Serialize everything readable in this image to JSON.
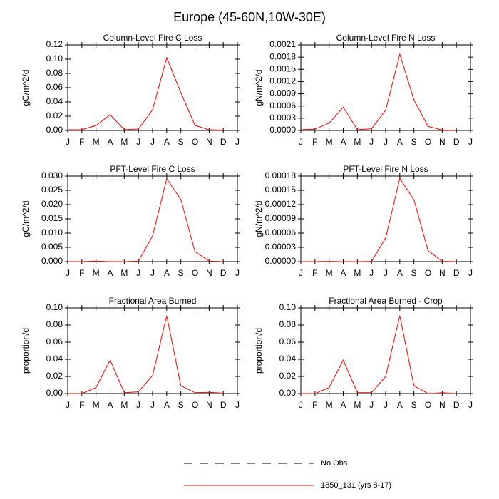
{
  "title": "Europe (45-60N,10W-30E)",
  "legend": [
    {
      "name": "No Obs",
      "color": "#000000",
      "dashed": true
    },
    {
      "name": "1850_131 (yrs 8-17)",
      "color": "#ff0000",
      "dashed": false
    }
  ],
  "chart_data": [
    {
      "type": "line",
      "title": "Column-Level Fire C Loss",
      "y_label": "gC/m^2/d",
      "color": "#ff0000",
      "categories": [
        "J",
        "F",
        "M",
        "A",
        "M",
        "J",
        "J",
        "A",
        "S",
        "O",
        "N",
        "D",
        "J"
      ],
      "values": [
        0.001,
        0.001,
        0.007,
        0.022,
        0.001,
        0.002,
        0.029,
        0.102,
        0.053,
        0.007,
        0.001,
        0.0005,
        null
      ],
      "ylim": [
        0,
        0.12
      ],
      "yticks": [
        {
          "value": 0,
          "label": "0.00"
        },
        0.02,
        0.04,
        0.06,
        0.08,
        {
          "value": 0.1,
          "label": "0.10"
        },
        0.12
      ]
    },
    {
      "type": "line",
      "title": "Column-Level Fire N Loss",
      "y_label": "gN/m^2/d",
      "color": "#ff0000",
      "categories": [
        "J",
        "F",
        "M",
        "A",
        "M",
        "J",
        "J",
        "A",
        "S",
        "O",
        "N",
        "D",
        "J"
      ],
      "values": [
        2e-05,
        3e-05,
        0.00018,
        0.00057,
        2e-05,
        4e-05,
        0.0005,
        0.00187,
        0.00075,
        0.0001,
        1e-05,
        5e-06,
        null
      ],
      "ylim": [
        0,
        0.0021
      ],
      "yticks": [
        {
          "value": 0,
          "label": "0.0000"
        },
        0.0003,
        0.0006,
        0.0009,
        0.0012,
        0.0015,
        0.0018,
        0.0021
      ]
    },
    {
      "type": "line",
      "title": "PFT-Level Fire C Loss",
      "y_label": "gC/m^2/d",
      "color": "#ff0000",
      "categories": [
        "J",
        "F",
        "M",
        "A",
        "M",
        "J",
        "J",
        "A",
        "S",
        "O",
        "N",
        "D",
        "J"
      ],
      "values": [
        0,
        0,
        0.0002,
        0,
        0,
        0.0002,
        0.009,
        0.029,
        0.0218,
        0.0035,
        0.0002,
        0,
        null
      ],
      "ylim": [
        0,
        0.03
      ],
      "yticks": [
        {
          "value": 0,
          "label": "0.000"
        },
        0.005,
        {
          "value": 0.01,
          "label": "0.010"
        },
        0.015,
        {
          "value": 0.02,
          "label": "0.020"
        },
        0.025,
        {
          "value": 0.03,
          "label": "0.030"
        }
      ]
    },
    {
      "type": "line",
      "title": "PFT-Level Fire N Loss",
      "y_label": "gN/m^2/d",
      "color": "#ff0000",
      "categories": [
        "J",
        "F",
        "M",
        "A",
        "M",
        "J",
        "J",
        "A",
        "S",
        "O",
        "N",
        "D",
        "J"
      ],
      "values": [
        0,
        0,
        5e-07,
        0,
        0,
        5e-07,
        5e-05,
        0.000175,
        0.00013,
        2.3e-05,
        5e-07,
        0,
        null
      ],
      "ylim": [
        0,
        0.00018
      ],
      "yticks": [
        {
          "value": 0,
          "label": "0.00000"
        },
        3e-05,
        6e-05,
        9e-05,
        0.00012,
        0.00015,
        0.00018
      ]
    },
    {
      "type": "line",
      "title": "Fractional Area Burned",
      "y_label": "proportion/d",
      "color": "#ff0000",
      "categories": [
        "J",
        "F",
        "M",
        "A",
        "M",
        "J",
        "J",
        "A",
        "S",
        "O",
        "N",
        "D",
        "J"
      ],
      "values": [
        0,
        0,
        0.007,
        0.039,
        0.001,
        0.002,
        0.021,
        0.091,
        0.009,
        0.001,
        0.0015,
        0.0005,
        null
      ],
      "ylim": [
        0,
        0.1
      ],
      "yticks": [
        {
          "value": 0,
          "label": "0.00"
        },
        0.02,
        0.04,
        0.06,
        0.08,
        {
          "value": 0.1,
          "label": "0.10"
        }
      ]
    },
    {
      "type": "line",
      "title": "Fractional Area Burned - Crop",
      "y_label": "proportion/d",
      "color": "#ff0000",
      "categories": [
        "J",
        "F",
        "M",
        "A",
        "M",
        "J",
        "J",
        "A",
        "S",
        "O",
        "N",
        "D",
        "J"
      ],
      "values": [
        0,
        0,
        0.007,
        0.039,
        0.001,
        0.001,
        0.02,
        0.091,
        0.009,
        0,
        0.001,
        0,
        null
      ],
      "ylim": [
        0,
        0.1
      ],
      "yticks": [
        {
          "value": 0,
          "label": "0.00"
        },
        0.02,
        0.04,
        0.06,
        0.08,
        {
          "value": 0.1,
          "label": "0.10"
        }
      ]
    }
  ]
}
